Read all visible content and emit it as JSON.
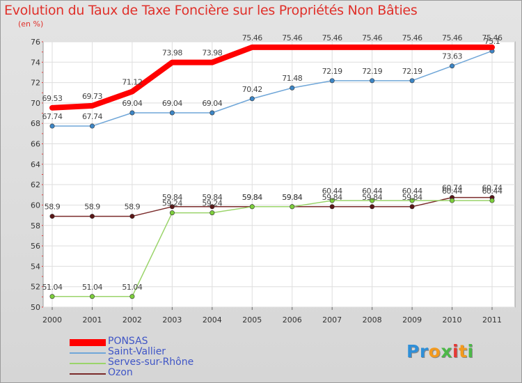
{
  "title": "Evolution du Taux de Taxe Foncière sur les Propriétés Non Bâties",
  "unit": "(en %)",
  "logo": {
    "letters": [
      "P",
      "r",
      "o",
      "x",
      "i",
      "t",
      "i"
    ],
    "colors": [
      "#2f8fd8",
      "#2f8fd8",
      "#f39a1e",
      "#4cb848",
      "#e53935",
      "#f39a1e",
      "#4cb848"
    ]
  },
  "chart_data": {
    "type": "line",
    "title": "Evolution du Taux de Taxe Foncière sur les Propriétés Non Bâties",
    "ylabel": "(en %)",
    "xlabel": "",
    "x": [
      "2000",
      "2001",
      "2002",
      "2003",
      "2004",
      "2005",
      "2006",
      "2007",
      "2008",
      "2009",
      "2010",
      "2011"
    ],
    "ylim": [
      50,
      76
    ],
    "yticks": [
      50,
      52,
      54,
      56,
      58,
      60,
      62,
      64,
      66,
      68,
      70,
      72,
      74,
      76
    ],
    "grid": true,
    "legend": "bottom-left",
    "series": [
      {
        "name": "PONSAS",
        "color": "#ff0000",
        "width": 8,
        "marker": false,
        "values": [
          69.53,
          69.73,
          71.12,
          73.98,
          73.98,
          75.46,
          75.46,
          75.46,
          75.46,
          75.46,
          75.46,
          75.46
        ],
        "labels": [
          "69.53",
          "69.73",
          "71.12",
          "73.98",
          "73.98",
          "75.46",
          "75.46",
          "75.46",
          "75.46",
          "75.46",
          "75.46",
          "75.46"
        ]
      },
      {
        "name": "Saint-Vallier",
        "color": "#6fa6d8",
        "width": 1.5,
        "marker": true,
        "markerColor": "#3d86c6",
        "values": [
          67.74,
          67.74,
          69.04,
          69.04,
          69.04,
          70.42,
          71.48,
          72.19,
          72.19,
          72.19,
          73.63,
          75.1
        ],
        "labels": [
          "67.74",
          "67.74",
          "69.04",
          "69.04",
          "69.04",
          "70.42",
          "71.48",
          "72.19",
          "72.19",
          "72.19",
          "73.63",
          "75.1"
        ]
      },
      {
        "name": "Serves-sur-Rhône",
        "color": "#9ad46a",
        "width": 1.5,
        "marker": true,
        "markerColor": "#7dcf3c",
        "values": [
          51.04,
          51.04,
          51.04,
          59.24,
          59.24,
          59.84,
          59.84,
          60.44,
          60.44,
          60.44,
          60.44,
          60.44
        ],
        "labels": [
          "51.04",
          "51.04",
          "51.04",
          "59.24",
          "59.24",
          "59.84",
          "59.84",
          "60.44",
          "60.44",
          "60.44",
          "60.44",
          "60.44"
        ]
      },
      {
        "name": "Ozon",
        "color": "#7a2a2a",
        "width": 1.5,
        "marker": true,
        "markerColor": "#5a1616",
        "values": [
          58.9,
          58.9,
          58.9,
          59.84,
          59.84,
          59.84,
          59.84,
          59.84,
          59.84,
          59.84,
          60.74,
          60.74
        ],
        "labels": [
          "58.9",
          "58.9",
          "58.9",
          "59.84",
          "59.84",
          "59.84",
          "59.84",
          "59.84",
          "59.84",
          "59.84",
          "60.74",
          "60.74"
        ]
      }
    ]
  }
}
